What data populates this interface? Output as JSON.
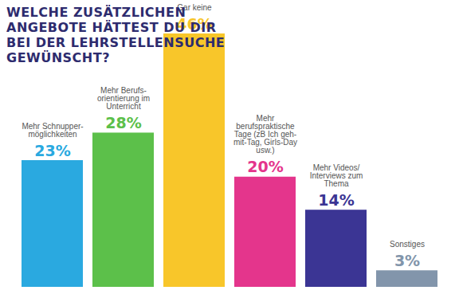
{
  "chart_data": {
    "type": "bar",
    "title": "WELCHE ZUSÄTZLICHEN ANGEBOTE HÄTTEST DU DIR BEI DER LEHRSTELLENSUCHE GEWÜNSCHT?",
    "categories": [
      "Mehr Schnupper-möglichkeiten",
      "Mehr Berufs-orientierung im Unterricht",
      "Gar keine",
      "Mehr berufspraktische Tage (zB Ich geh-mit-Tag, Girls-Day usw.)",
      "Mehr Videos/ Interviews zum Thema",
      "Sonstiges"
    ],
    "values": [
      23,
      28,
      46,
      20,
      14,
      3
    ],
    "value_labels": [
      "23%",
      "28%",
      "46%",
      "20%",
      "14%",
      "3%"
    ],
    "colors": [
      "#2aa9e0",
      "#5cc04a",
      "#f8c62a",
      "#e4358c",
      "#3b3594",
      "#8295ab"
    ],
    "data_labels": true,
    "tick_labels": false
  }
}
